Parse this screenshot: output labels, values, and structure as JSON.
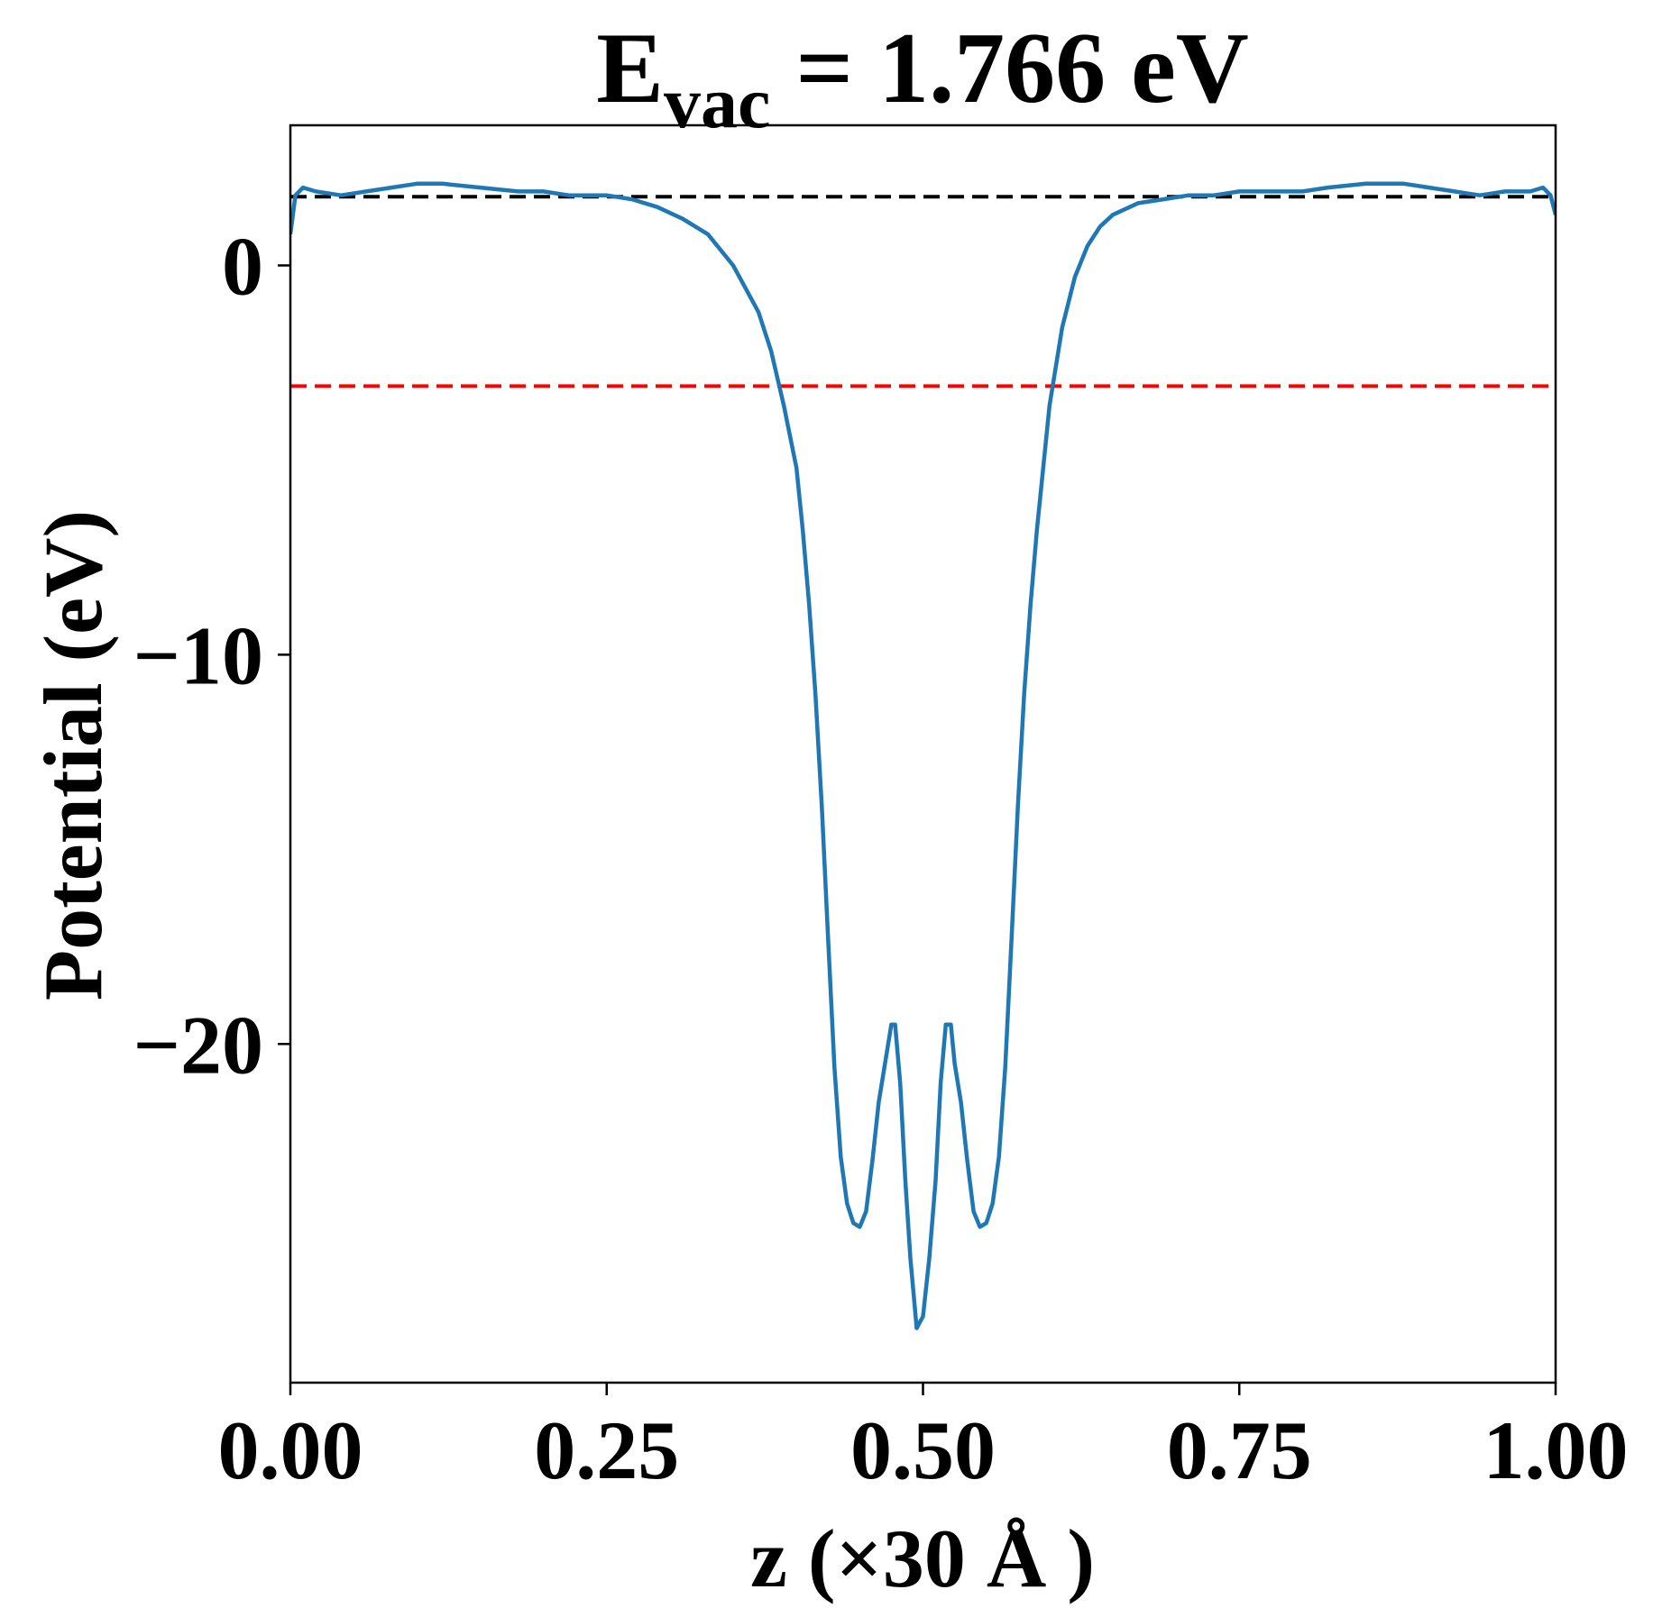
{
  "chart_data": {
    "type": "line",
    "title": {
      "main": "E",
      "subscript": "vac",
      "rest": " = 1.766 eV"
    },
    "xlabel": "z (×30 Å )",
    "ylabel": "Potential (eV)",
    "xlim": [
      0.0,
      1.0
    ],
    "ylim": [
      -28.7,
      3.6
    ],
    "x_ticks": [
      0.0,
      0.25,
      0.5,
      0.75,
      1.0
    ],
    "x_tick_labels": [
      "0.00",
      "0.25",
      "0.50",
      "0.75",
      "1.00"
    ],
    "y_ticks": [
      0,
      -10,
      -20
    ],
    "y_tick_labels": [
      "0",
      "−10",
      "−20"
    ],
    "grid": false,
    "legend": "none",
    "reference_lines": [
      {
        "y": 1.766,
        "color": "#000000",
        "style": "dashed"
      },
      {
        "y": -3.1,
        "color": "#ff0000",
        "style": "dashed"
      }
    ],
    "series": [
      {
        "color": "#1f77b4",
        "x": [
          0.0,
          0.004,
          0.01,
          0.02,
          0.04,
          0.06,
          0.08,
          0.1,
          0.12,
          0.15,
          0.18,
          0.2,
          0.22,
          0.25,
          0.27,
          0.29,
          0.31,
          0.33,
          0.35,
          0.36,
          0.37,
          0.38,
          0.39,
          0.4,
          0.405,
          0.41,
          0.415,
          0.42,
          0.425,
          0.43,
          0.435,
          0.44,
          0.445,
          0.45,
          0.455,
          0.46,
          0.465,
          0.47,
          0.475,
          0.478,
          0.482,
          0.486,
          0.49,
          0.495,
          0.5,
          0.505,
          0.51,
          0.514,
          0.518,
          0.522,
          0.525,
          0.53,
          0.535,
          0.54,
          0.545,
          0.55,
          0.555,
          0.56,
          0.565,
          0.57,
          0.575,
          0.58,
          0.585,
          0.59,
          0.595,
          0.6,
          0.61,
          0.62,
          0.63,
          0.64,
          0.65,
          0.67,
          0.69,
          0.71,
          0.73,
          0.75,
          0.78,
          0.8,
          0.82,
          0.85,
          0.88,
          0.9,
          0.92,
          0.94,
          0.96,
          0.98,
          0.99,
          0.996,
          1.0
        ],
        "y": [
          0.8,
          1.8,
          2.0,
          1.9,
          1.8,
          1.9,
          2.0,
          2.1,
          2.1,
          2.0,
          1.9,
          1.9,
          1.8,
          1.8,
          1.7,
          1.5,
          1.2,
          0.8,
          0.0,
          -0.6,
          -1.2,
          -2.2,
          -3.6,
          -5.2,
          -6.8,
          -8.7,
          -11.0,
          -13.9,
          -17.3,
          -20.6,
          -22.9,
          -24.1,
          -24.6,
          -24.7,
          -24.3,
          -23.0,
          -21.5,
          -20.5,
          -19.5,
          -19.5,
          -21.0,
          -23.5,
          -25.5,
          -27.3,
          -27.0,
          -25.5,
          -23.5,
          -21.0,
          -19.5,
          -19.5,
          -20.5,
          -21.5,
          -23.0,
          -24.3,
          -24.7,
          -24.6,
          -24.1,
          -22.9,
          -20.6,
          -17.3,
          -13.9,
          -11.0,
          -8.7,
          -6.8,
          -5.2,
          -3.6,
          -1.6,
          -0.3,
          0.5,
          1.0,
          1.3,
          1.6,
          1.7,
          1.8,
          1.8,
          1.9,
          1.9,
          1.9,
          2.0,
          2.1,
          2.1,
          2.0,
          1.9,
          1.8,
          1.9,
          1.9,
          2.0,
          1.8,
          1.3
        ]
      }
    ]
  }
}
